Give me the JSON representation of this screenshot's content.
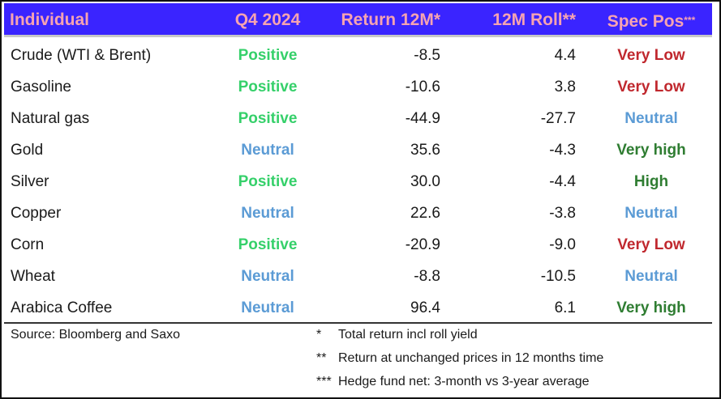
{
  "colors": {
    "header_bg": "#3a24ff",
    "header_text": "#f6a3b1",
    "positive": "#35d06a",
    "neutral": "#5b9bd5",
    "very_low": "#c0282e",
    "high": "#2f7d32"
  },
  "header": {
    "col0": "Individual",
    "col1": "Q4 2024",
    "col2": "Return 12M*",
    "col3": "12M Roll**",
    "col4": "Spec Pos",
    "col4_suffix": "***"
  },
  "chart_data": {
    "type": "table",
    "columns": [
      "Individual",
      "Q4 2024",
      "Return 12M*",
      "12M Roll**",
      "Spec Pos***"
    ],
    "rows": [
      {
        "name": "Crude (WTI & Brent)",
        "q4": "Positive",
        "ret": "-8.5",
        "roll": "4.4",
        "spec": "Very Low"
      },
      {
        "name": "Gasoline",
        "q4": "Positive",
        "ret": "-10.6",
        "roll": "3.8",
        "spec": "Very Low"
      },
      {
        "name": "Natural gas",
        "q4": "Positive",
        "ret": "-44.9",
        "roll": "-27.7",
        "spec": "Neutral"
      },
      {
        "name": "Gold",
        "q4": "Neutral",
        "ret": "35.6",
        "roll": "-4.3",
        "spec": "Very high"
      },
      {
        "name": "Silver",
        "q4": "Positive",
        "ret": "30.0",
        "roll": "-4.4",
        "spec": "High"
      },
      {
        "name": "Copper",
        "q4": "Neutral",
        "ret": "22.6",
        "roll": "-3.8",
        "spec": "Neutral"
      },
      {
        "name": "Corn",
        "q4": "Positive",
        "ret": "-20.9",
        "roll": "-9.0",
        "spec": "Very Low"
      },
      {
        "name": "Wheat",
        "q4": "Neutral",
        "ret": "-8.8",
        "roll": "-10.5",
        "spec": "Neutral"
      },
      {
        "name": "Arabica Coffee",
        "q4": "Neutral",
        "ret": "96.4",
        "roll": "6.1",
        "spec": "Very high"
      }
    ]
  },
  "footer": {
    "source": "Source: Bloomberg and Saxo",
    "notes": [
      {
        "mark": "*",
        "text": "Total return incl roll yield"
      },
      {
        "mark": "**",
        "text": "Return at unchanged prices in 12 months time"
      },
      {
        "mark": "***",
        "text": "Hedge fund net: 3-month vs 3-year average"
      }
    ]
  }
}
